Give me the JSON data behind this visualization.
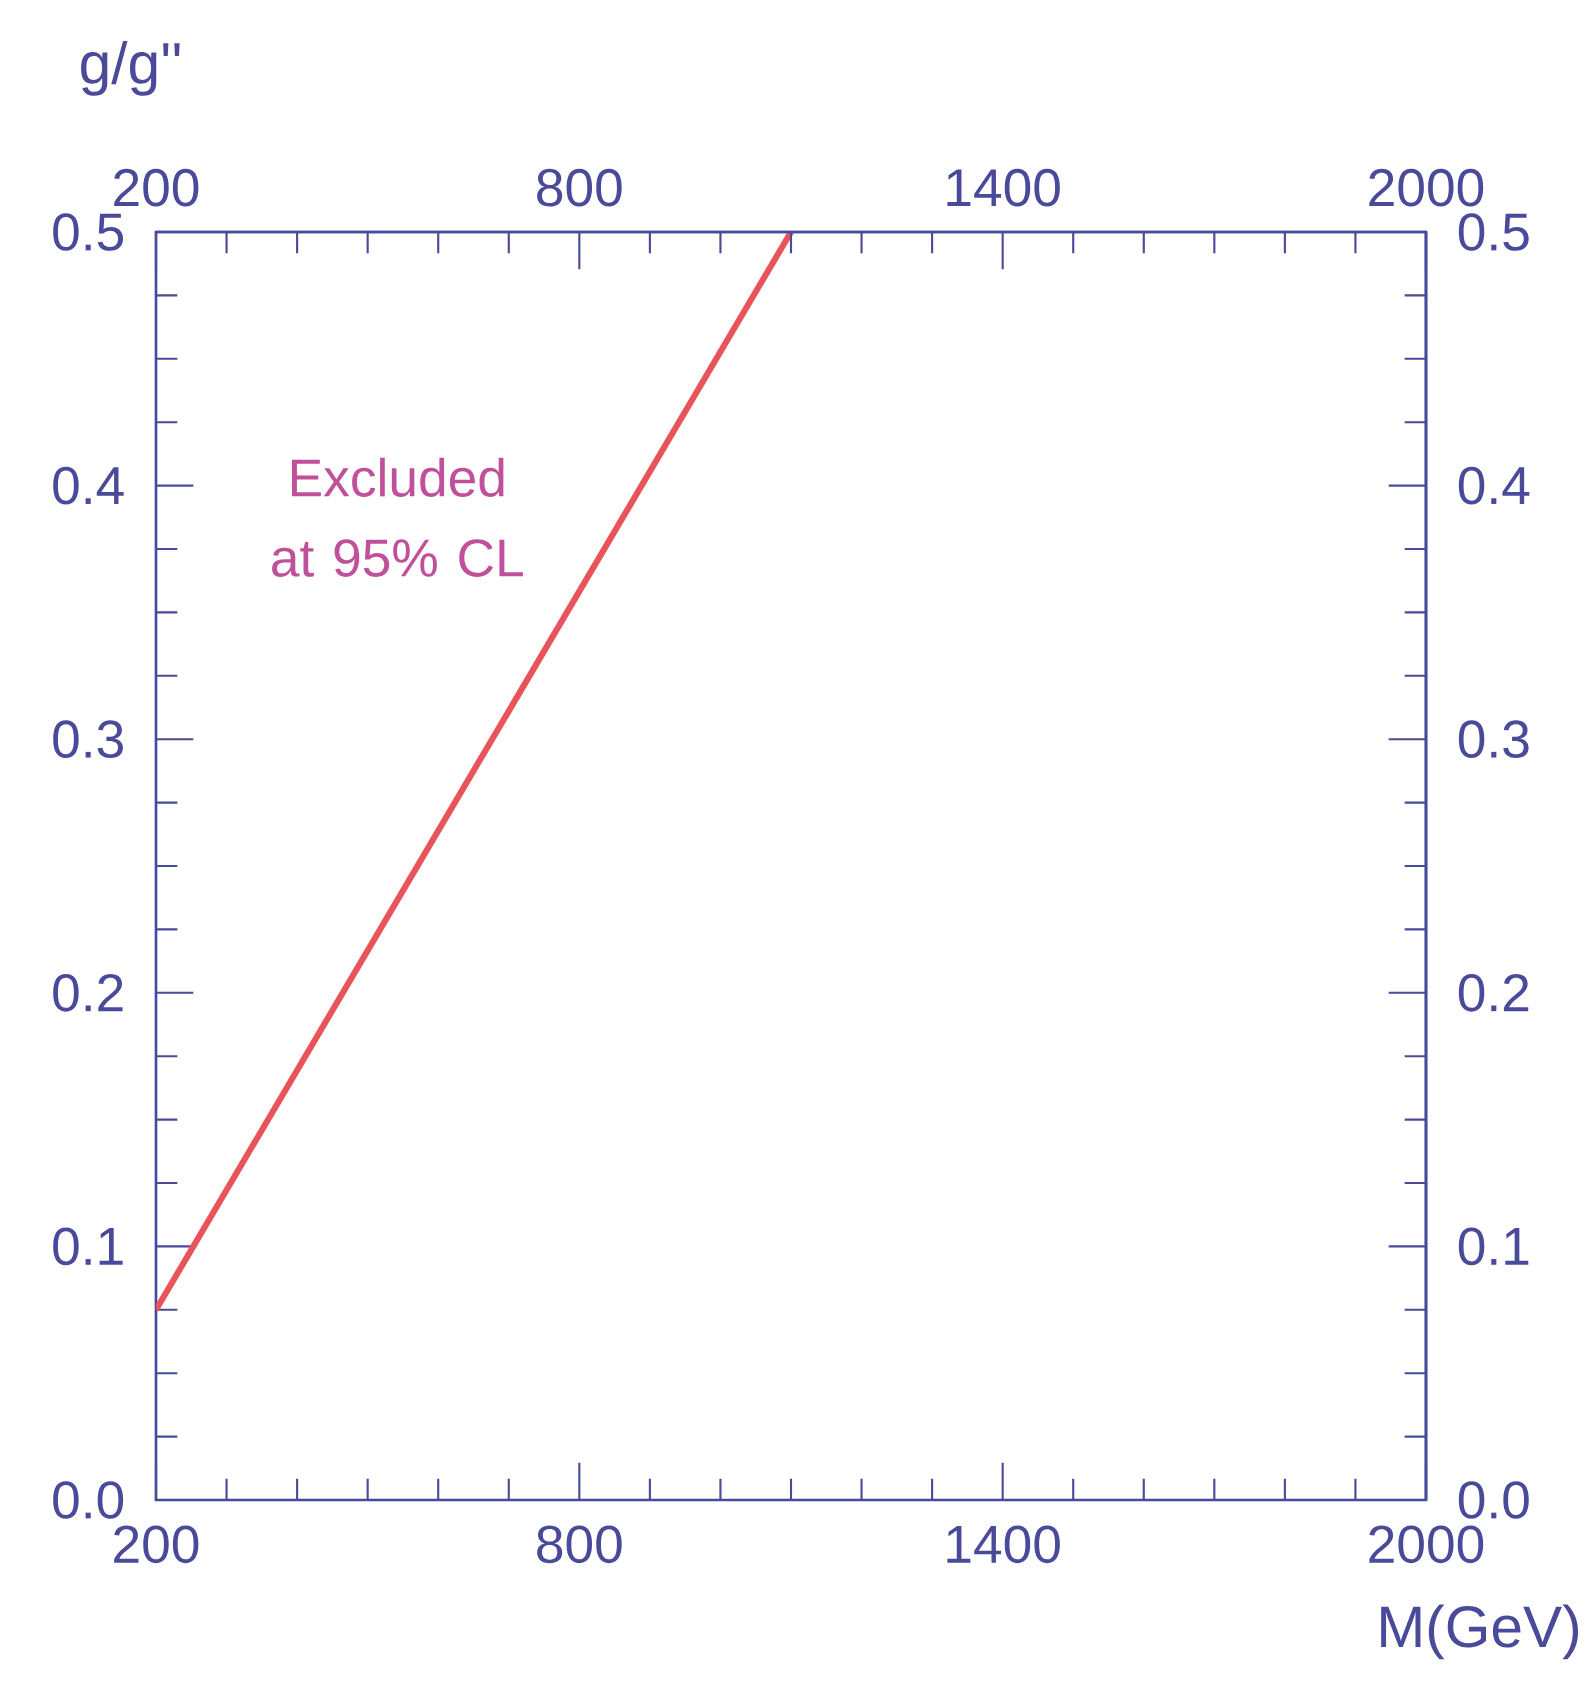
{
  "chart_data": {
    "type": "line",
    "xlabel": "M(GeV)",
    "ylabel": "g/g''",
    "annotations": [
      "Excluded at 95% CL"
    ],
    "series": [
      {
        "x": [
          200,
          1100
        ],
        "values": [
          0.075,
          0.5
        ],
        "color": "#e8545a"
      }
    ],
    "xlim": [
      200,
      2000
    ],
    "xticks": [
      200,
      800,
      1400,
      2000
    ],
    "x2lim": [
      200,
      2000
    ],
    "x2ticks": [
      200,
      800,
      1400,
      2000
    ],
    "ylim": [
      0,
      0.5
    ],
    "yticks": [
      {
        "value": 0,
        "label": "0.0"
      },
      0.1,
      0.2,
      0.3,
      0.4,
      0.5
    ],
    "y2lim": [
      0,
      0.5
    ],
    "y2ticks": [
      {
        "value": 0,
        "label": "0.0"
      },
      0.1,
      0.2,
      0.3,
      0.4,
      0.5
    ],
    "grid": false,
    "marker": "none",
    "line_style": "solid"
  }
}
